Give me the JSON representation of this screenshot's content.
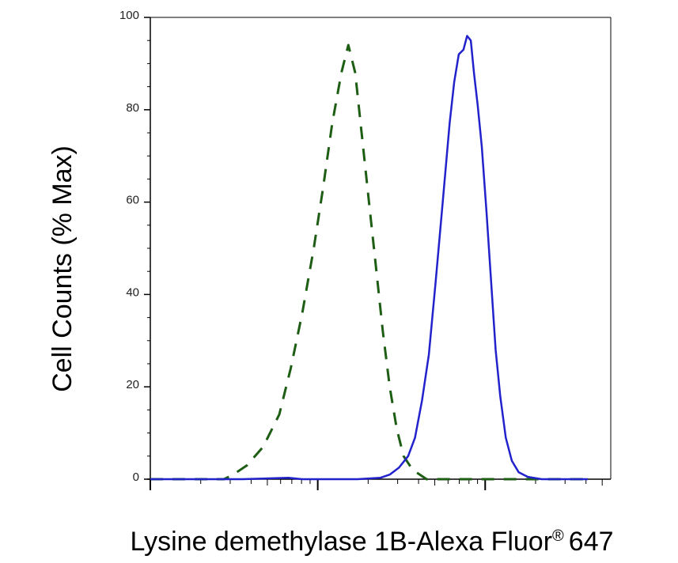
{
  "chart_data": {
    "type": "line",
    "title": "",
    "xlabel": "Lysine demethylase 1B-Alexa Fluor",
    "xlabel_superscript": "®",
    "xlabel_suffix": "647",
    "ylabel": "Cell Counts (% Max)",
    "x_scale": "log",
    "x_ticks_labeled": false,
    "ylim": [
      0,
      100
    ],
    "yticks": [
      "0",
      "20",
      "40",
      "60",
      "80",
      "100"
    ],
    "grid": false,
    "legend": "none",
    "series": [
      {
        "style": "dashed",
        "color": "#1e5e14",
        "points": [
          [
            0.0,
            0
          ],
          [
            0.08,
            0
          ],
          [
            0.16,
            0
          ],
          [
            0.18,
            1
          ],
          [
            0.21,
            3
          ],
          [
            0.245,
            7
          ],
          [
            0.28,
            14
          ],
          [
            0.305,
            24
          ],
          [
            0.33,
            36
          ],
          [
            0.355,
            50
          ],
          [
            0.375,
            63
          ],
          [
            0.395,
            77
          ],
          [
            0.415,
            88
          ],
          [
            0.43,
            94
          ],
          [
            0.445,
            88
          ],
          [
            0.46,
            74
          ],
          [
            0.475,
            60
          ],
          [
            0.49,
            46
          ],
          [
            0.505,
            32
          ],
          [
            0.52,
            20
          ],
          [
            0.535,
            11
          ],
          [
            0.55,
            5
          ],
          [
            0.57,
            2
          ],
          [
            0.6,
            0
          ],
          [
            0.7,
            0
          ],
          [
            0.85,
            0
          ],
          [
            0.95,
            0
          ]
        ]
      },
      {
        "style": "solid",
        "color": "#2222cc",
        "points": [
          [
            0.0,
            0
          ],
          [
            0.2,
            0
          ],
          [
            0.3,
            0.3
          ],
          [
            0.33,
            0
          ],
          [
            0.45,
            0
          ],
          [
            0.5,
            0.3
          ],
          [
            0.52,
            1
          ],
          [
            0.54,
            2.5
          ],
          [
            0.56,
            5
          ],
          [
            0.575,
            9
          ],
          [
            0.59,
            17
          ],
          [
            0.605,
            27
          ],
          [
            0.62,
            43
          ],
          [
            0.635,
            60
          ],
          [
            0.65,
            77
          ],
          [
            0.66,
            86
          ],
          [
            0.67,
            92
          ],
          [
            0.68,
            93
          ],
          [
            0.688,
            96
          ],
          [
            0.696,
            95
          ],
          [
            0.703,
            88
          ],
          [
            0.711,
            81
          ],
          [
            0.72,
            72
          ],
          [
            0.73,
            58
          ],
          [
            0.74,
            43
          ],
          [
            0.75,
            28
          ],
          [
            0.76,
            18
          ],
          [
            0.772,
            9
          ],
          [
            0.785,
            4
          ],
          [
            0.8,
            1.5
          ],
          [
            0.82,
            0.5
          ],
          [
            0.85,
            0
          ],
          [
            0.95,
            0
          ]
        ]
      }
    ]
  }
}
